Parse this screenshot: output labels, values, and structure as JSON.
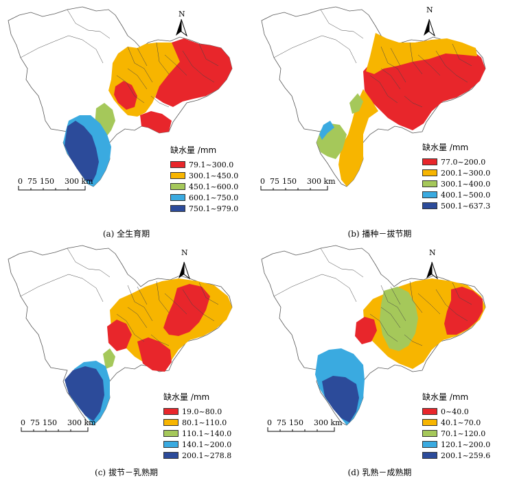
{
  "legend_title": "缺水量 /mm",
  "north_label": "N",
  "scale_labels": [
    "0",
    "75",
    "150",
    "300 km"
  ],
  "palette": [
    "#e8262b",
    "#f7b500",
    "#a5c85a",
    "#3aaae0",
    "#2c4b9a"
  ],
  "panels": [
    {
      "caption_id": "(a)",
      "caption_text": "全生育期",
      "legend": [
        "79.1~300.0",
        "300.1~450.0",
        "450.1~600.0",
        "600.1~750.0",
        "750.1~979.0"
      ]
    },
    {
      "caption_id": "(b)",
      "caption_text": "播种－拔节期",
      "legend": [
        "77.0~200.0",
        "200.1~300.0",
        "300.1~400.0",
        "400.1~500.0",
        "500.1~637.3"
      ]
    },
    {
      "caption_id": "(c)",
      "caption_text": "拔节－乳熟期",
      "legend": [
        "19.0~80.0",
        "80.1~110.0",
        "110.1~140.0",
        "140.1~200.0",
        "200.1~278.8"
      ]
    },
    {
      "caption_id": "(d)",
      "caption_text": "乳熟－成熟期",
      "legend": [
        "0~40.0",
        "40.1~70.0",
        "70.1~120.0",
        "120.1~200.0",
        "200.1~259.6"
      ]
    }
  ]
}
